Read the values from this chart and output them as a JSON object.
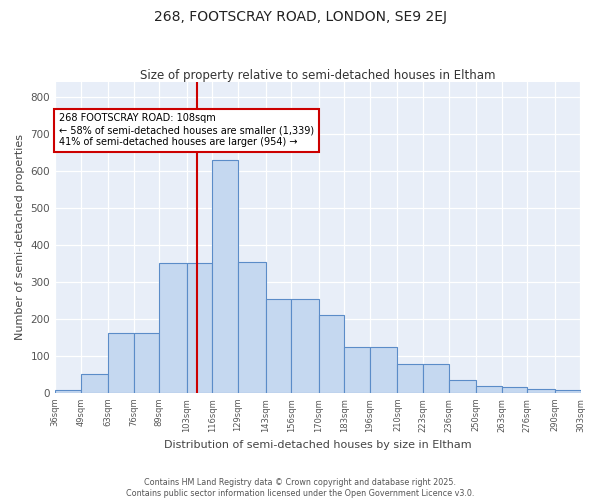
{
  "title1": "268, FOOTSCRAY ROAD, LONDON, SE9 2EJ",
  "title2": "Size of property relative to semi-detached houses in Eltham",
  "xlabel": "Distribution of semi-detached houses by size in Eltham",
  "ylabel": "Number of semi-detached properties",
  "bar_color": "#c5d8f0",
  "bar_edge_color": "#5b8cc8",
  "annotation_line_color": "#cc0000",
  "property_size": 108,
  "annotation_text_line1": "268 FOOTSCRAY ROAD: 108sqm",
  "annotation_text_line2": "← 58% of semi-detached houses are smaller (1,339)",
  "annotation_text_line3": "41% of semi-detached houses are larger (954) →",
  "bin_edges": [
    36,
    49,
    63,
    76,
    89,
    103,
    116,
    129,
    143,
    156,
    170,
    183,
    196,
    210,
    223,
    236,
    250,
    263,
    276,
    290,
    303
  ],
  "bar_heights": [
    8,
    50,
    162,
    162,
    350,
    350,
    630,
    355,
    255,
    255,
    210,
    125,
    125,
    78,
    78,
    35,
    20,
    15,
    10,
    8
  ],
  "bin_labels": [
    "36sqm",
    "49sqm",
    "63sqm",
    "76sqm",
    "89sqm",
    "103sqm",
    "116sqm",
    "129sqm",
    "143sqm",
    "156sqm",
    "170sqm",
    "183sqm",
    "196sqm",
    "210sqm",
    "223sqm",
    "236sqm",
    "250sqm",
    "263sqm",
    "276sqm",
    "290sqm",
    "303sqm"
  ],
  "ylim": [
    0,
    840
  ],
  "yticks": [
    0,
    100,
    200,
    300,
    400,
    500,
    600,
    700,
    800
  ],
  "footer1": "Contains HM Land Registry data © Crown copyright and database right 2025.",
  "footer2": "Contains public sector information licensed under the Open Government Licence v3.0.",
  "background_color": "#e8eef8",
  "fig_bg_color": "#ffffff"
}
